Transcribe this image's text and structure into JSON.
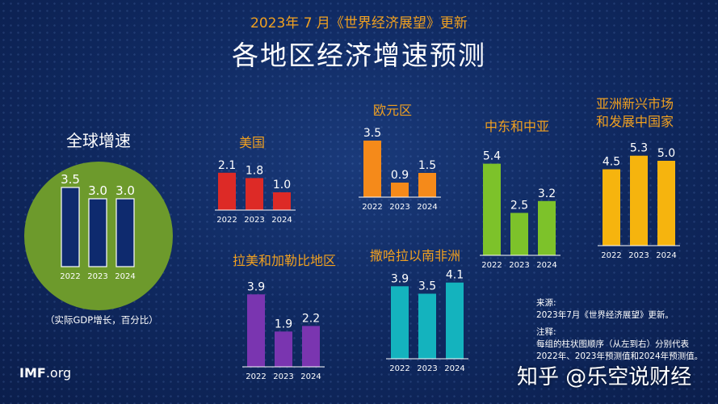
{
  "header": {
    "subtitle": "2023年 7 月《世界经济展望》更新",
    "title": "各地区经济增速预测"
  },
  "global": {
    "label": "全球增速",
    "note": "（实际GDP增长，百分比）"
  },
  "colors": {
    "background": "#102a62",
    "accent_title": "#f0a020",
    "global_circle": "#6d9a2c",
    "global_bar": "#0e2a6e"
  },
  "chart_data": [
    {
      "type": "bar",
      "region": "global",
      "title": "全球增速",
      "categories": [
        "2022",
        "2023",
        "2024"
      ],
      "values": [
        3.5,
        3.0,
        3.0
      ],
      "labels": [
        "3.5",
        "3.0",
        "3.0"
      ],
      "color": "#0e2a6e"
    },
    {
      "type": "bar",
      "region": "us",
      "title": "美国",
      "categories": [
        "2022",
        "2023",
        "2024"
      ],
      "values": [
        2.1,
        1.8,
        1.0
      ],
      "labels": [
        "2.1",
        "1.8",
        "1.0"
      ],
      "color": "#dd2a26"
    },
    {
      "type": "bar",
      "region": "euro",
      "title": "欧元区",
      "categories": [
        "2022",
        "2023",
        "2024"
      ],
      "values": [
        3.5,
        0.9,
        1.5
      ],
      "labels": [
        "3.5",
        "0.9",
        "1.5"
      ],
      "color": "#f58a1a"
    },
    {
      "type": "bar",
      "region": "mena",
      "title": "中东和中亚",
      "categories": [
        "2022",
        "2023",
        "2024"
      ],
      "values": [
        5.4,
        2.5,
        3.2
      ],
      "labels": [
        "5.4",
        "2.5",
        "3.2"
      ],
      "color": "#7dc22a"
    },
    {
      "type": "bar",
      "region": "asia",
      "title": "亚洲新兴市场和发展中国家",
      "title_lines": [
        "亚洲新兴市场",
        "和发展中国家"
      ],
      "categories": [
        "2022",
        "2023",
        "2024"
      ],
      "values": [
        4.5,
        5.3,
        5.0
      ],
      "labels": [
        "4.5",
        "5.3",
        "5.0"
      ],
      "color": "#f6b40e"
    },
    {
      "type": "bar",
      "region": "latam",
      "title": "拉美和加勒比地区",
      "categories": [
        "2022",
        "2023",
        "2024"
      ],
      "values": [
        3.9,
        1.9,
        2.2
      ],
      "labels": [
        "3.9",
        "1.9",
        "2.2"
      ],
      "color": "#7a35b0"
    },
    {
      "type": "bar",
      "region": "ssa",
      "title": "撒哈拉以南非洲",
      "categories": [
        "2022",
        "2023",
        "2024"
      ],
      "values": [
        3.9,
        3.5,
        4.1
      ],
      "labels": [
        "3.9",
        "3.5",
        "4.1"
      ],
      "color": "#14b3be"
    }
  ],
  "source": {
    "label": "来源:",
    "text": "2023年7月《世界经济展望》更新。"
  },
  "notes": {
    "label": "注释:",
    "line1": "每组的柱状图顺序（从左到右）分别代表",
    "line2": "2022年、2023年预测值和2024年预测值。"
  },
  "footer": {
    "logo_bold": "IMF",
    "logo_rest": ".org",
    "watermark": "知乎 @乐空说财经"
  }
}
